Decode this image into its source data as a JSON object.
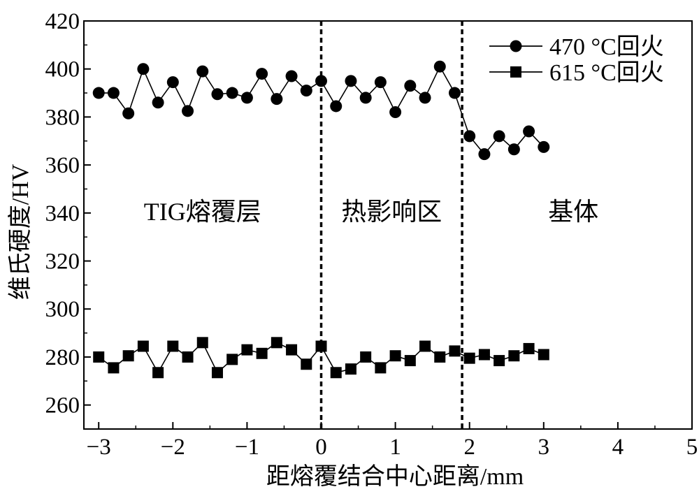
{
  "chart_data": {
    "type": "line",
    "title": "",
    "xlabel": "距熔覆结合中心距离/mm",
    "ylabel": "维氏硬度/HV",
    "xlim": [
      -3.2,
      5
    ],
    "ylim": [
      250,
      420
    ],
    "x_ticks": [
      -3,
      -2,
      -1,
      0,
      1,
      2,
      3,
      4,
      5
    ],
    "x_tick_labels": [
      "−3",
      "−2",
      "−1",
      "0",
      "1",
      "2",
      "3",
      "4",
      "5"
    ],
    "y_ticks": [
      260,
      280,
      300,
      320,
      340,
      360,
      380,
      400,
      420
    ],
    "y_tick_labels": [
      "260",
      "280",
      "300",
      "320",
      "340",
      "360",
      "380",
      "400",
      "420"
    ],
    "grid": false,
    "legend_position": "top-right",
    "boundaries": [
      0,
      1.9
    ],
    "regions": [
      {
        "label": "TIG熔覆层",
        "x": -1.6
      },
      {
        "label": "热影响区",
        "x": 0.95
      },
      {
        "label": "基体",
        "x": 3.4
      }
    ],
    "series": [
      {
        "name": "470 °C回火",
        "marker": "circle",
        "x": [
          -3.0,
          -2.8,
          -2.6,
          -2.4,
          -2.2,
          -2.0,
          -1.8,
          -1.6,
          -1.4,
          -1.2,
          -1.0,
          -0.8,
          -0.6,
          -0.4,
          -0.2,
          0.0,
          0.2,
          0.4,
          0.6,
          0.8,
          1.0,
          1.2,
          1.4,
          1.6,
          1.8,
          2.0,
          2.2,
          2.4,
          2.6,
          2.8,
          3.0
        ],
        "values": [
          390,
          390,
          381.5,
          400,
          386,
          394.5,
          382.5,
          399,
          389.5,
          390,
          388,
          398,
          387.5,
          397,
          391,
          395,
          384.5,
          395,
          388,
          394.5,
          382,
          393,
          388,
          401,
          390,
          372,
          364.5,
          372,
          366.5,
          374,
          367.5
        ]
      },
      {
        "name": "615 °C回火",
        "marker": "square",
        "x": [
          -3.0,
          -2.8,
          -2.6,
          -2.4,
          -2.2,
          -2.0,
          -1.8,
          -1.6,
          -1.4,
          -1.2,
          -1.0,
          -0.8,
          -0.6,
          -0.4,
          -0.2,
          0.0,
          0.2,
          0.4,
          0.6,
          0.8,
          1.0,
          1.2,
          1.4,
          1.6,
          1.8,
          2.0,
          2.2,
          2.4,
          2.6,
          2.8,
          3.0
        ],
        "values": [
          280,
          275.5,
          280.5,
          284.5,
          273.5,
          284.5,
          280,
          286,
          273.5,
          279,
          283,
          281.5,
          286,
          283,
          277,
          284.5,
          273.5,
          275,
          280,
          275.5,
          280.5,
          278.5,
          284.5,
          280,
          282.5,
          279.5,
          281,
          278.5,
          280.5,
          283.5,
          281
        ]
      }
    ]
  }
}
